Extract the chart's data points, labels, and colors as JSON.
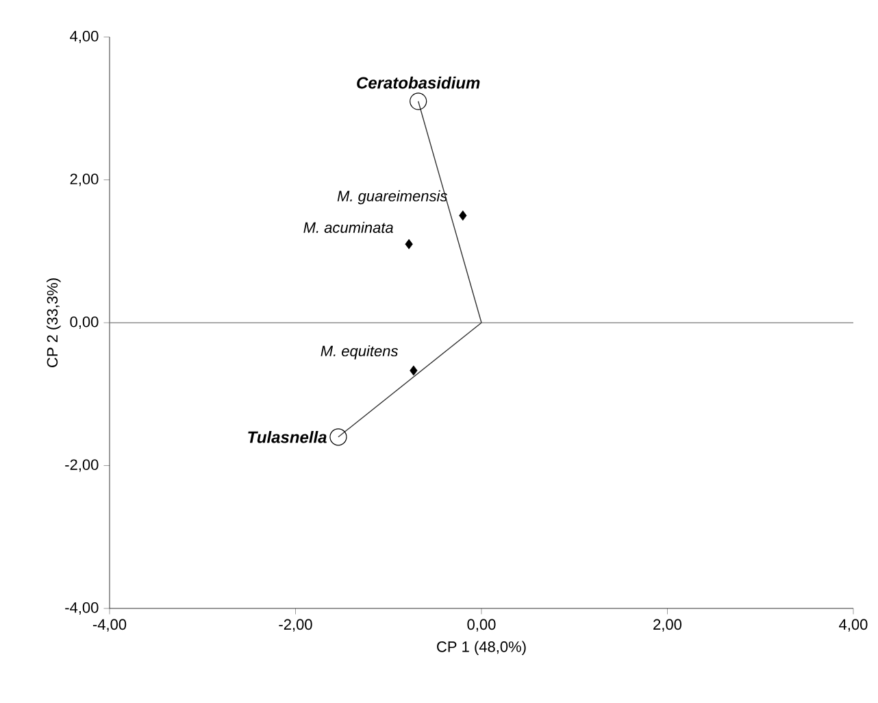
{
  "chart_data": {
    "type": "scatter",
    "xlabel": "CP 1 (48,0%)",
    "ylabel": "CP 2 (33,3%)",
    "xlim": [
      -4,
      4
    ],
    "ylim": [
      -4,
      4
    ],
    "xticks": [
      {
        "value": -4,
        "label": "-4,00"
      },
      {
        "value": -2,
        "label": "-2,00"
      },
      {
        "value": 0,
        "label": "0,00"
      },
      {
        "value": 2,
        "label": "2,00"
      },
      {
        "value": 4,
        "label": "4,00"
      }
    ],
    "yticks": [
      {
        "value": -4,
        "label": "-4,00"
      },
      {
        "value": -2,
        "label": "-2,00"
      },
      {
        "value": 0,
        "label": "0,00"
      },
      {
        "value": 2,
        "label": "2,00"
      },
      {
        "value": 4,
        "label": "4,00"
      }
    ],
    "ref_lines": [
      {
        "axis": "y",
        "value": 0,
        "color": "#8c8c8c"
      }
    ],
    "marker": "diamond",
    "series": [
      {
        "type": "line",
        "marker": "none",
        "color": "#333333",
        "x": [
          0,
          -0.68
        ],
        "values": [
          0,
          3.1
        ]
      },
      {
        "type": "line",
        "marker": "none",
        "color": "#333333",
        "x": [
          0,
          -1.54
        ],
        "values": [
          0,
          -1.6
        ]
      },
      {
        "name": "Ceratobasidium",
        "marker": "circle",
        "color": "#000000",
        "x": [
          -0.68
        ],
        "values": [
          3.1
        ]
      },
      {
        "name": "Tulasnella",
        "marker": "circle",
        "color": "#000000",
        "x": [
          -1.54
        ],
        "values": [
          -1.6
        ]
      },
      {
        "name": "M. guareimensis",
        "color": "#000000",
        "x": [
          -0.2
        ],
        "values": [
          1.5
        ]
      },
      {
        "name": "M. acuminata",
        "color": "#000000",
        "x": [
          -0.78
        ],
        "values": [
          1.1
        ]
      },
      {
        "name": "M. equitens",
        "color": "#000000",
        "x": [
          -0.73
        ],
        "values": [
          -0.67
        ]
      }
    ]
  }
}
